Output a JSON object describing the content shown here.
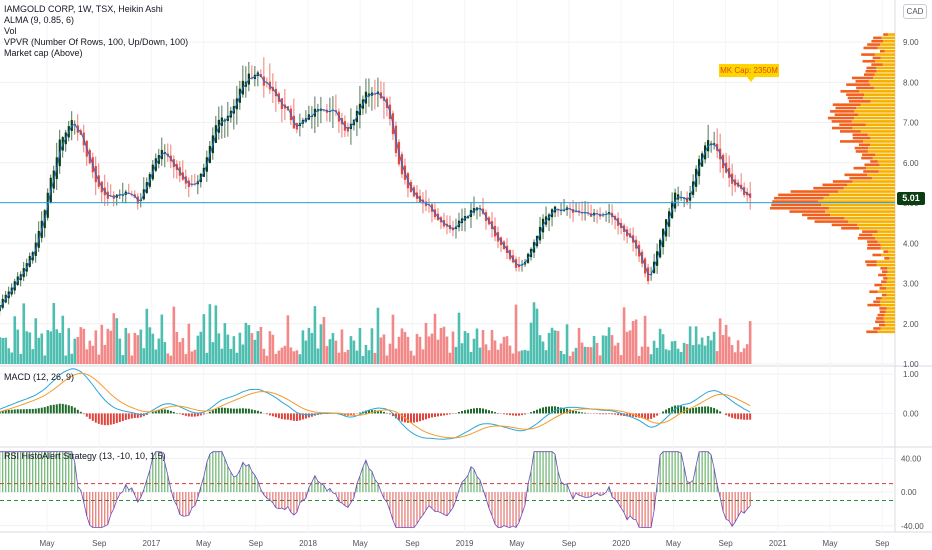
{
  "header": {
    "symbol_line": "IAMGOLD CORP, 1W, TSX, Heikin Ashi",
    "indicators": [
      "ALMA (9, 0.85, 6)",
      "Vol",
      "VPVR (Number Of Rows, 100, Up/Down, 100)",
      "Market cap (Above)"
    ],
    "currency": "CAD"
  },
  "market_cap_label": "MK Cap: 2350M",
  "last_price_label": "5.01",
  "macd_pane": {
    "title": "MACD (12, 26, 9)"
  },
  "rsi_pane": {
    "title": "RSI HistoAlert Strategy (13, -10, 10, 1.5)"
  },
  "colors": {
    "bull_candle": "#0b3d12",
    "bear_candle": "#e8453c",
    "alma_line": "#1f6fd0",
    "vol_up": "#2fb3a3",
    "vol_down": "#f07373",
    "vpvr_up": "#f7b000",
    "vpvr_down": "#f3601e",
    "macd_line": "#2aa8d8",
    "signal_line": "#f39c2c",
    "hist_pos": "#1e6b2a",
    "hist_neg": "#e0433b",
    "price_line": "#29a0d8"
  },
  "chart_data": [
    {
      "type": "candlestick",
      "pane": "price",
      "title": "IAMGOLD CORP, 1W, TSX, Heikin Ashi",
      "y_ticks": [
        "9.00",
        "8.00",
        "7.00",
        "6.00",
        "5.00",
        "4.00",
        "3.00",
        "2.00",
        "1.00"
      ],
      "ylim": [
        1.0,
        9.3
      ],
      "last_price": 5.01,
      "x_ticks": [
        "May",
        "Sep",
        "2017",
        "May",
        "Sep",
        "2018",
        "May",
        "Sep",
        "2019",
        "May",
        "Sep",
        "2020",
        "May",
        "Sep",
        "2021",
        "May",
        "Sep"
      ],
      "x_tick_dates": [
        "2016-05",
        "2016-09",
        "2017-01",
        "2017-05",
        "2017-09",
        "2018-01",
        "2018-05",
        "2018-09",
        "2019-01",
        "2019-05",
        "2019-09",
        "2020-01",
        "2020-05",
        "2020-09",
        "2021-01",
        "2021-05",
        "2021-09"
      ],
      "close_path": [
        {
          "date": "2015-12",
          "close": 1.9
        },
        {
          "date": "2016-02",
          "close": 2.8
        },
        {
          "date": "2016-03",
          "close": 3.3
        },
        {
          "date": "2016-04",
          "close": 3.9
        },
        {
          "date": "2016-05",
          "close": 5.2
        },
        {
          "date": "2016-06",
          "close": 6.6
        },
        {
          "date": "2016-07",
          "close": 7.1
        },
        {
          "date": "2016-08",
          "close": 6.2
        },
        {
          "date": "2016-09",
          "close": 5.3
        },
        {
          "date": "2016-10",
          "close": 5.1
        },
        {
          "date": "2016-11",
          "close": 5.3
        },
        {
          "date": "2016-12",
          "close": 5.0
        },
        {
          "date": "2017-01",
          "close": 6.0
        },
        {
          "date": "2017-02",
          "close": 6.3
        },
        {
          "date": "2017-03",
          "close": 5.7
        },
        {
          "date": "2017-04",
          "close": 5.4
        },
        {
          "date": "2017-05",
          "close": 5.8
        },
        {
          "date": "2017-06",
          "close": 7.0
        },
        {
          "date": "2017-07",
          "close": 7.3
        },
        {
          "date": "2017-08",
          "close": 8.0
        },
        {
          "date": "2017-09",
          "close": 8.3
        },
        {
          "date": "2017-10",
          "close": 7.8
        },
        {
          "date": "2017-11",
          "close": 7.4
        },
        {
          "date": "2017-12",
          "close": 6.9
        },
        {
          "date": "2018-01",
          "close": 7.1
        },
        {
          "date": "2018-02",
          "close": 7.5
        },
        {
          "date": "2018-03",
          "close": 7.2
        },
        {
          "date": "2018-04",
          "close": 6.8
        },
        {
          "date": "2018-05",
          "close": 7.6
        },
        {
          "date": "2018-06",
          "close": 7.9
        },
        {
          "date": "2018-07",
          "close": 7.5
        },
        {
          "date": "2018-08",
          "close": 5.8
        },
        {
          "date": "2018-09",
          "close": 5.1
        },
        {
          "date": "2018-10",
          "close": 5.0
        },
        {
          "date": "2018-11",
          "close": 4.6
        },
        {
          "date": "2018-12",
          "close": 4.3
        },
        {
          "date": "2019-01",
          "close": 4.7
        },
        {
          "date": "2019-02",
          "close": 4.9
        },
        {
          "date": "2019-03",
          "close": 4.3
        },
        {
          "date": "2019-04",
          "close": 3.8
        },
        {
          "date": "2019-05",
          "close": 3.3
        },
        {
          "date": "2019-06",
          "close": 3.8
        },
        {
          "date": "2019-07",
          "close": 4.6
        },
        {
          "date": "2019-08",
          "close": 4.9
        },
        {
          "date": "2019-09",
          "close": 4.8
        },
        {
          "date": "2019-10",
          "close": 4.8
        },
        {
          "date": "2019-11",
          "close": 4.7
        },
        {
          "date": "2019-12",
          "close": 4.8
        },
        {
          "date": "2020-01",
          "close": 4.3
        },
        {
          "date": "2020-02",
          "close": 4.0
        },
        {
          "date": "2020-03",
          "close": 3.0
        },
        {
          "date": "2020-04",
          "close": 4.2
        },
        {
          "date": "2020-05",
          "close": 5.3
        },
        {
          "date": "2020-06",
          "close": 5.0
        },
        {
          "date": "2020-07",
          "close": 6.3
        },
        {
          "date": "2020-08",
          "close": 6.6
        },
        {
          "date": "2020-09",
          "close": 5.7
        },
        {
          "date": "2020-10",
          "close": 5.3
        },
        {
          "date": "2020-11",
          "close": 5.01
        }
      ]
    },
    {
      "type": "bar",
      "pane": "volume",
      "title": "Vol"
    },
    {
      "type": "bar",
      "pane": "vpvr",
      "title": "VPVR (Number Of Rows, 100, Up/Down, 100)",
      "series": [
        {
          "name": "Up"
        },
        {
          "name": "Down"
        }
      ]
    },
    {
      "type": "line",
      "pane": "macd",
      "title": "MACD (12, 26, 9)",
      "y_ticks": [
        "1.00",
        "0.00"
      ],
      "ylim": [
        -0.8,
        1.1
      ]
    },
    {
      "type": "bar",
      "pane": "rsi",
      "title": "RSI HistoAlert Strategy (13, -10, 10, 1.5)",
      "y_ticks": [
        "40.00",
        "0.00",
        "-40.00"
      ],
      "ylim": [
        -45,
        50
      ],
      "thresholds": [
        10,
        -10
      ]
    }
  ]
}
